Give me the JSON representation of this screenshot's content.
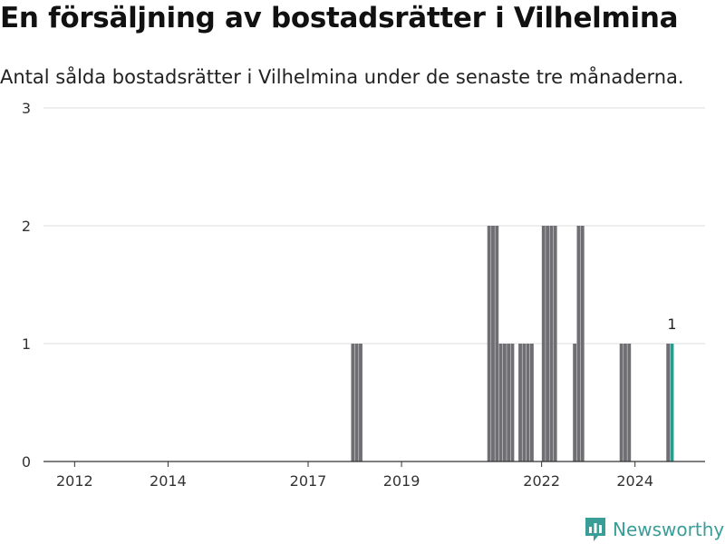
{
  "header": {
    "title": "En försäljning av bostadsrätter i Vilhelmina",
    "subtitle": "Antal sålda bostadsrätter i Vilhelmina under de senaste tre månaderna."
  },
  "brand": {
    "name": "Newsworthy",
    "icon": "newsworthy-logo-icon",
    "color": "#3a9e98"
  },
  "colors": {
    "bar": "#6e6e73",
    "highlight": "#2a9d8f",
    "grid": "#dddddd",
    "axis": "#333333"
  },
  "chart_data": {
    "type": "bar",
    "title": "En försäljning av bostadsrätter i Vilhelmina",
    "subtitle": "Antal sålda bostadsrätter i Vilhelmina under de senaste tre månaderna.",
    "xlabel": "",
    "ylabel": "",
    "ylim": [
      0,
      3
    ],
    "yticks": [
      0,
      1,
      2,
      3
    ],
    "xlim": [
      "2011-05",
      "2025-07"
    ],
    "xticks": [
      {
        "label": "2012",
        "x": "2012-01"
      },
      {
        "label": "2014",
        "x": "2014-01"
      },
      {
        "label": "2017",
        "x": "2017-01"
      },
      {
        "label": "2019",
        "x": "2019-01"
      },
      {
        "label": "2022",
        "x": "2022-01"
      },
      {
        "label": "2024",
        "x": "2024-01"
      }
    ],
    "grid": true,
    "x": [
      "2017-12",
      "2018-01",
      "2018-02",
      "2020-11",
      "2020-12",
      "2021-01",
      "2021-02",
      "2021-03",
      "2021-04",
      "2021-05",
      "2021-06",
      "2021-07",
      "2021-08",
      "2021-09",
      "2021-10",
      "2021-11",
      "2021-12",
      "2022-01",
      "2022-02",
      "2022-03",
      "2022-04",
      "2022-05",
      "2022-06",
      "2022-07",
      "2022-08",
      "2022-09",
      "2022-10",
      "2022-11",
      "2023-09",
      "2023-10",
      "2023-11",
      "2024-09",
      "2024-10"
    ],
    "values": [
      1,
      1,
      1,
      2,
      2,
      2,
      1,
      1,
      1,
      1,
      0,
      1,
      1,
      1,
      1,
      0,
      0,
      2,
      2,
      2,
      2,
      0,
      0,
      0,
      0,
      1,
      2,
      2,
      1,
      1,
      1,
      1,
      1
    ],
    "highlight_index": 32,
    "annotation": {
      "x": "2024-10",
      "text": "1"
    }
  }
}
